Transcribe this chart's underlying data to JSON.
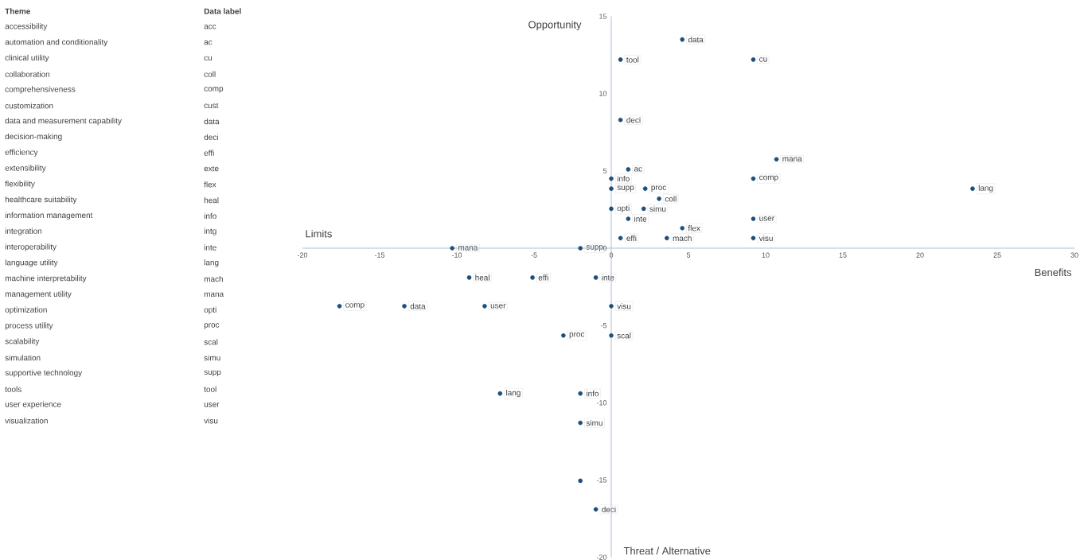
{
  "chart_data": [
    {
      "type": "scatter",
      "xlabel": "Benefits",
      "ylabel": "Opportunity",
      "x": [
        4.6,
        0.6,
        9.2,
        0.6,
        10.7,
        1.1,
        0,
        9.2,
        23.4,
        0,
        2.2,
        3.1,
        0,
        2.1,
        1.1,
        9.2,
        4.6,
        0.6,
        3.6,
        9.2,
        -2,
        -10.3,
        -9.2,
        -5.1,
        -1,
        -17.6,
        -13.4,
        -8.2,
        0,
        -3.1,
        0,
        -7.2,
        -2,
        -2,
        -2,
        -1
      ],
      "series": [
        {
          "color": "#1f4e79",
          "values": [
            13.5,
            12.2,
            12.2,
            8.3,
            5.75,
            5.1,
            4.5,
            4.5,
            3.85,
            3.85,
            3.85,
            3.2,
            2.55,
            2.55,
            1.9,
            1.9,
            1.3,
            0.65,
            0.65,
            0.65,
            0,
            0,
            -1.9,
            -1.9,
            -1.9,
            -3.75,
            -3.75,
            -3.75,
            -3.75,
            -5.65,
            -5.65,
            -9.4,
            -9.4,
            -11.3,
            -15.05,
            -16.9
          ]
        }
      ],
      "xlim": [
        -20,
        30
      ],
      "xticks": [
        -20,
        -15,
        -10,
        -5,
        0,
        5,
        10,
        15,
        20,
        25,
        30
      ],
      "ylim": [
        -20,
        15
      ],
      "yticks": [
        -20,
        -15,
        -10,
        -5,
        0,
        5,
        10,
        15
      ],
      "marker": "circle",
      "grid": false,
      "annotations": [
        "Limits",
        "Threat / Alternative",
        {
          "text": "data",
          "x": 4.6,
          "y": 13.5
        },
        {
          "text": "tool",
          "x": 0.6,
          "y": 12.2
        },
        {
          "text": "cu",
          "x": 9.2,
          "y": 12.2
        },
        {
          "text": "deci",
          "x": 0.6,
          "y": 8.3
        },
        {
          "text": "mana",
          "x": 10.7,
          "y": 5.75
        },
        {
          "text": "ac",
          "x": 1.1,
          "y": 5.1
        },
        {
          "text": "info",
          "x": 0,
          "y": 4.5
        },
        {
          "text": "comp",
          "x": 9.2,
          "y": 4.5
        },
        {
          "text": "lang",
          "x": 23.4,
          "y": 3.85
        },
        {
          "text": "supp",
          "x": 0,
          "y": 3.85
        },
        {
          "text": "proc",
          "x": 2.2,
          "y": 3.85
        },
        {
          "text": "coll",
          "x": 3.1,
          "y": 3.2
        },
        {
          "text": "opti",
          "x": 0,
          "y": 2.55
        },
        {
          "text": "simu",
          "x": 2.1,
          "y": 2.55
        },
        {
          "text": "inte",
          "x": 1.1,
          "y": 1.9
        },
        {
          "text": "user",
          "x": 9.2,
          "y": 1.9
        },
        {
          "text": "flex",
          "x": 4.6,
          "y": 1.3
        },
        {
          "text": "effi",
          "x": 0.6,
          "y": 0.65
        },
        {
          "text": "mach",
          "x": 3.6,
          "y": 0.65
        },
        {
          "text": "visu",
          "x": 9.2,
          "y": 0.65
        },
        {
          "text": "supp",
          "x": -2,
          "y": 0
        },
        {
          "text": "mana",
          "x": -10.3,
          "y": 0
        },
        {
          "text": "heal",
          "x": -9.2,
          "y": -1.9
        },
        {
          "text": "effi",
          "x": -5.1,
          "y": -1.9
        },
        {
          "text": "inte",
          "x": -1,
          "y": -1.9
        },
        {
          "text": "comp",
          "x": -17.6,
          "y": -3.75
        },
        {
          "text": "data",
          "x": -13.4,
          "y": -3.75
        },
        {
          "text": "user",
          "x": -8.2,
          "y": -3.75
        },
        {
          "text": "visu",
          "x": 0,
          "y": -3.75
        },
        {
          "text": "proc",
          "x": -3.1,
          "y": -5.65
        },
        {
          "text": "scal",
          "x": 0,
          "y": -5.65
        },
        {
          "text": "lang",
          "x": -7.2,
          "y": -9.4
        },
        {
          "text": "info",
          "x": -2,
          "y": -9.4
        },
        {
          "text": "simu",
          "x": -2,
          "y": -11.3
        },
        {
          "text": "deci",
          "x": -1,
          "y": -16.9
        }
      ]
    },
    {
      "type": "other",
      "annotations": [
        "Theme",
        "Data label",
        "accessibility",
        "acc",
        "automation and conditionality",
        "ac",
        "clinical utility",
        "cu",
        "collaboration",
        "coll",
        "comprehensiveness",
        "comp",
        "customization",
        "cust",
        "data and measurement capability",
        "data",
        "decision-making",
        "deci",
        "efficiency",
        "effi",
        "extensibility",
        "exte",
        "flexibility",
        "flex",
        "healthcare suitability",
        "heal",
        "information management",
        "info",
        "integration",
        "intg",
        "interoperability",
        "inte",
        "language utility",
        "lang",
        "machine interpretability",
        "mach",
        "management utility",
        "mana",
        "optimization",
        "opti",
        "process utility",
        "proc",
        "scalability",
        "scal",
        "simulation",
        "simu",
        "supportive technology",
        "supp",
        "tools",
        "tool",
        "user experience",
        "user",
        "visualization",
        "visu"
      ]
    }
  ]
}
